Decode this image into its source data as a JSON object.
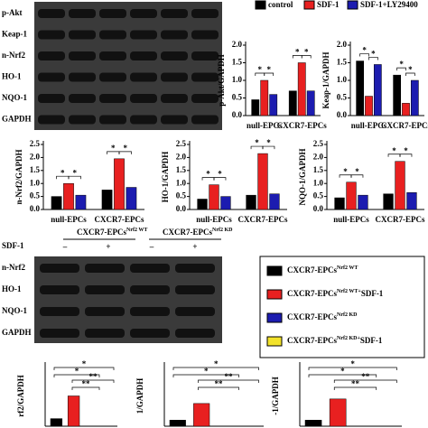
{
  "blots": [
    {
      "rows": [
        "p-Akt",
        "Keap-1",
        "n-Nrf2",
        "HO-1",
        "NQO-1",
        "GAPDH"
      ]
    },
    {
      "groups": [
        {
          "text": "CXCR7-EPCs",
          "sup": "Nrf2 WT"
        },
        {
          "text": "CXCR7-EPCs",
          "sup": "Nrf2 KD"
        }
      ],
      "treatment": "SDF-1",
      "signs": [
        "–",
        "+",
        "–",
        "+"
      ],
      "rows": [
        "n-Nrf2",
        "HO-1",
        "NQO-1",
        "GAPDH"
      ]
    }
  ],
  "bottom_legend": [
    {
      "text": "CXCR7-EPCs",
      "sup": "Nrf2 WT",
      "color": "#000000"
    },
    {
      "text": "CXCR7-EPCs",
      "sup": "Nrf2 WT+",
      "suffix": "SDF-1",
      "color": "#e82020"
    },
    {
      "text": "CXCR7-EPCs",
      "sup": "Nrf2 KD",
      "color": "#1c1cb0"
    },
    {
      "text": "CXCR7-EPCs",
      "sup": "Nrf2 KD+",
      "suffix": "SDF-1",
      "color": "#f2e22a"
    }
  ],
  "significance": "*",
  "chart_data": [
    {
      "type": "bar",
      "ylabel": "p-Akt/GAPDH",
      "legend": "top-right",
      "categories": [
        "null-EPCs",
        "CXCR7-EPCs"
      ],
      "series": [
        {
          "name": "control",
          "color": "#000000",
          "values": [
            0.45,
            0.7
          ]
        },
        {
          "name": "SDF-1",
          "color": "#e82020",
          "values": [
            1.0,
            1.5
          ]
        },
        {
          "name": "SDF-1+LY29400",
          "color": "#1c1cb0",
          "values": [
            0.6,
            0.7
          ]
        }
      ],
      "ylim": [
        0,
        2
      ],
      "yticks": [
        {
          "value": 0,
          "label": "0.0"
        },
        0.5,
        {
          "value": 1,
          "label": "1.0"
        },
        1.5,
        {
          "value": 2,
          "label": "2.0"
        }
      ]
    },
    {
      "type": "bar",
      "ylabel": "Keap-1/GAPDH",
      "categories": [
        "null-EPCs",
        "CXCR7-EPCs"
      ],
      "series": [
        {
          "name": "control",
          "color": "#000000",
          "values": [
            1.55,
            1.15
          ]
        },
        {
          "name": "SDF-1",
          "color": "#e82020",
          "values": [
            0.55,
            0.35
          ]
        },
        {
          "name": "SDF-1+LY29400",
          "color": "#1c1cb0",
          "values": [
            1.45,
            1.0
          ]
        }
      ],
      "ylim": [
        0,
        2
      ],
      "yticks": [
        {
          "value": 0,
          "label": "0.0"
        },
        0.5,
        {
          "value": 1,
          "label": "1.0"
        },
        1.5,
        {
          "value": 2,
          "label": "2.0"
        }
      ]
    },
    {
      "type": "bar",
      "ylabel": "n-Nrf2/GAPDH",
      "categories": [
        "null-EPCs",
        "CXCR7-EPCs"
      ],
      "series": [
        {
          "name": "control",
          "color": "#000000",
          "values": [
            0.5,
            0.75
          ]
        },
        {
          "name": "SDF-1",
          "color": "#e82020",
          "values": [
            1.0,
            1.95
          ]
        },
        {
          "name": "SDF-1+LY29400",
          "color": "#1c1cb0",
          "values": [
            0.55,
            0.85
          ]
        }
      ],
      "ylim": [
        0,
        2.5
      ],
      "yticks": [
        {
          "value": 0,
          "label": "0.0"
        },
        0.5,
        {
          "value": 1,
          "label": "1.0"
        },
        1.5,
        {
          "value": 2,
          "label": "2.0"
        },
        2.5
      ]
    },
    {
      "type": "bar",
      "ylabel": "HO-1/GAPDH",
      "categories": [
        "null-EPCs",
        "CXCR7-EPCs"
      ],
      "series": [
        {
          "name": "control",
          "color": "#000000",
          "values": [
            0.4,
            0.55
          ]
        },
        {
          "name": "SDF-1",
          "color": "#e82020",
          "values": [
            0.95,
            2.15
          ]
        },
        {
          "name": "SDF-1+LY29400",
          "color": "#1c1cb0",
          "values": [
            0.5,
            0.6
          ]
        }
      ],
      "ylim": [
        0,
        2.5
      ],
      "yticks": [
        {
          "value": 0,
          "label": "0.0"
        },
        0.5,
        {
          "value": 1,
          "label": "1.0"
        },
        1.5,
        {
          "value": 2,
          "label": "2.0"
        },
        2.5
      ]
    },
    {
      "type": "bar",
      "ylabel": "NQO-1/GAPDH",
      "categories": [
        "null-EPCs",
        "CXCR7-EPCs"
      ],
      "series": [
        {
          "name": "control",
          "color": "#000000",
          "values": [
            0.45,
            0.6
          ]
        },
        {
          "name": "SDF-1",
          "color": "#e82020",
          "values": [
            1.05,
            1.85
          ]
        },
        {
          "name": "SDF-1+LY29400",
          "color": "#1c1cb0",
          "values": [
            0.55,
            0.65
          ]
        }
      ],
      "ylim": [
        0,
        2.5
      ],
      "yticks": [
        {
          "value": 0,
          "label": "0.0"
        },
        0.5,
        {
          "value": 1,
          "label": "1.0"
        },
        1.5,
        {
          "value": 2,
          "label": "2.0"
        },
        2.5
      ]
    },
    {
      "type": "partial",
      "ylabel": "rf2/GAPDH",
      "values": [
        0.25,
        1.0
      ],
      "colors": [
        "#000000",
        "#e82020"
      ],
      "ylim": [
        0,
        2
      ]
    },
    {
      "type": "partial",
      "ylabel": "1/GAPDH",
      "values": [
        0.2,
        0.75
      ],
      "colors": [
        "#000000",
        "#e82020"
      ],
      "ylim": [
        0,
        2
      ]
    },
    {
      "type": "partial",
      "ylabel": "-1/GAPDH",
      "values": [
        0.2,
        0.9
      ],
      "colors": [
        "#000000",
        "#e82020"
      ],
      "ylim": [
        0,
        2
      ]
    }
  ]
}
